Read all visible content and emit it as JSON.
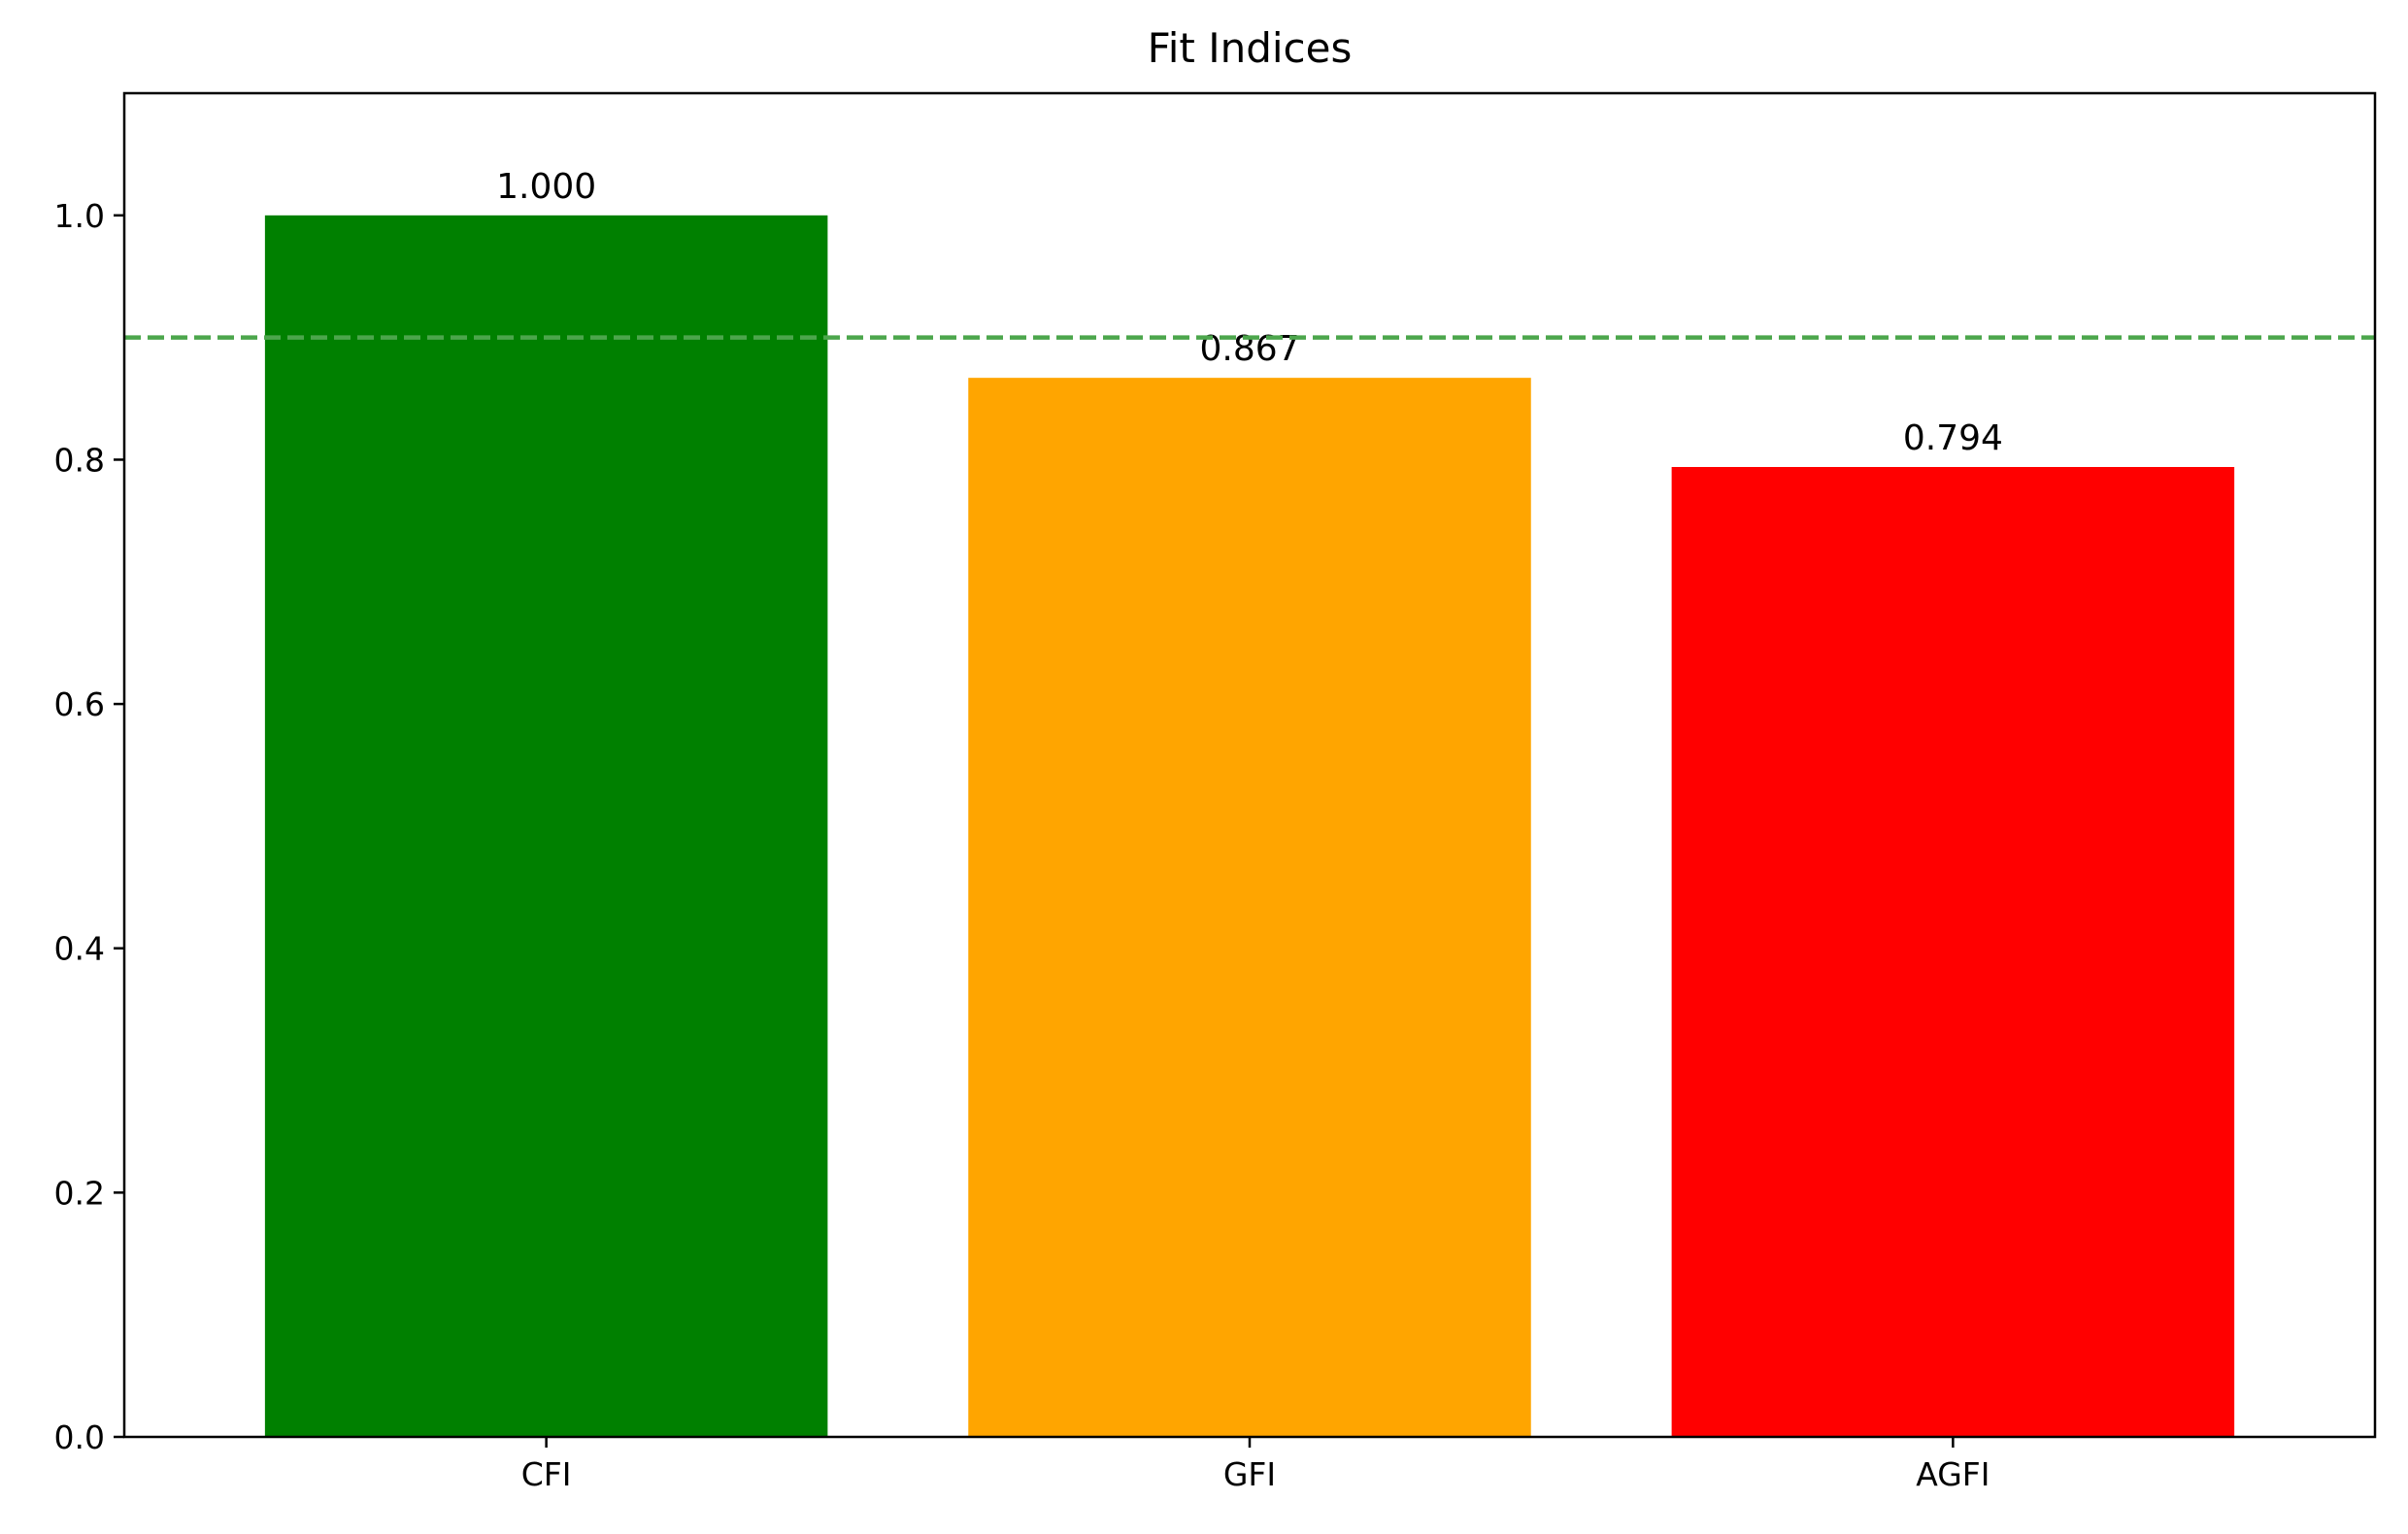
{
  "chart_data": {
    "type": "bar",
    "title": "Fit Indices",
    "xlabel": "",
    "ylabel": "",
    "categories": [
      "CFI",
      "GFI",
      "AGFI"
    ],
    "values": [
      1.0,
      0.867,
      0.794
    ],
    "value_labels": [
      "1.000",
      "0.867",
      "0.794"
    ],
    "bar_colors": [
      "#008000",
      "#ffa500",
      "#ff0000"
    ],
    "ylim": [
      0,
      1.1
    ],
    "yticks": [
      0.0,
      0.2,
      0.4,
      0.6,
      0.8,
      1.0
    ],
    "ytick_labels": [
      "0.0",
      "0.2",
      "0.4",
      "0.6",
      "0.8",
      "1.0"
    ],
    "reference_line": {
      "value": 0.9,
      "style": "dashed",
      "color": "#4ca64c"
    },
    "grid": false,
    "legend": "none"
  }
}
